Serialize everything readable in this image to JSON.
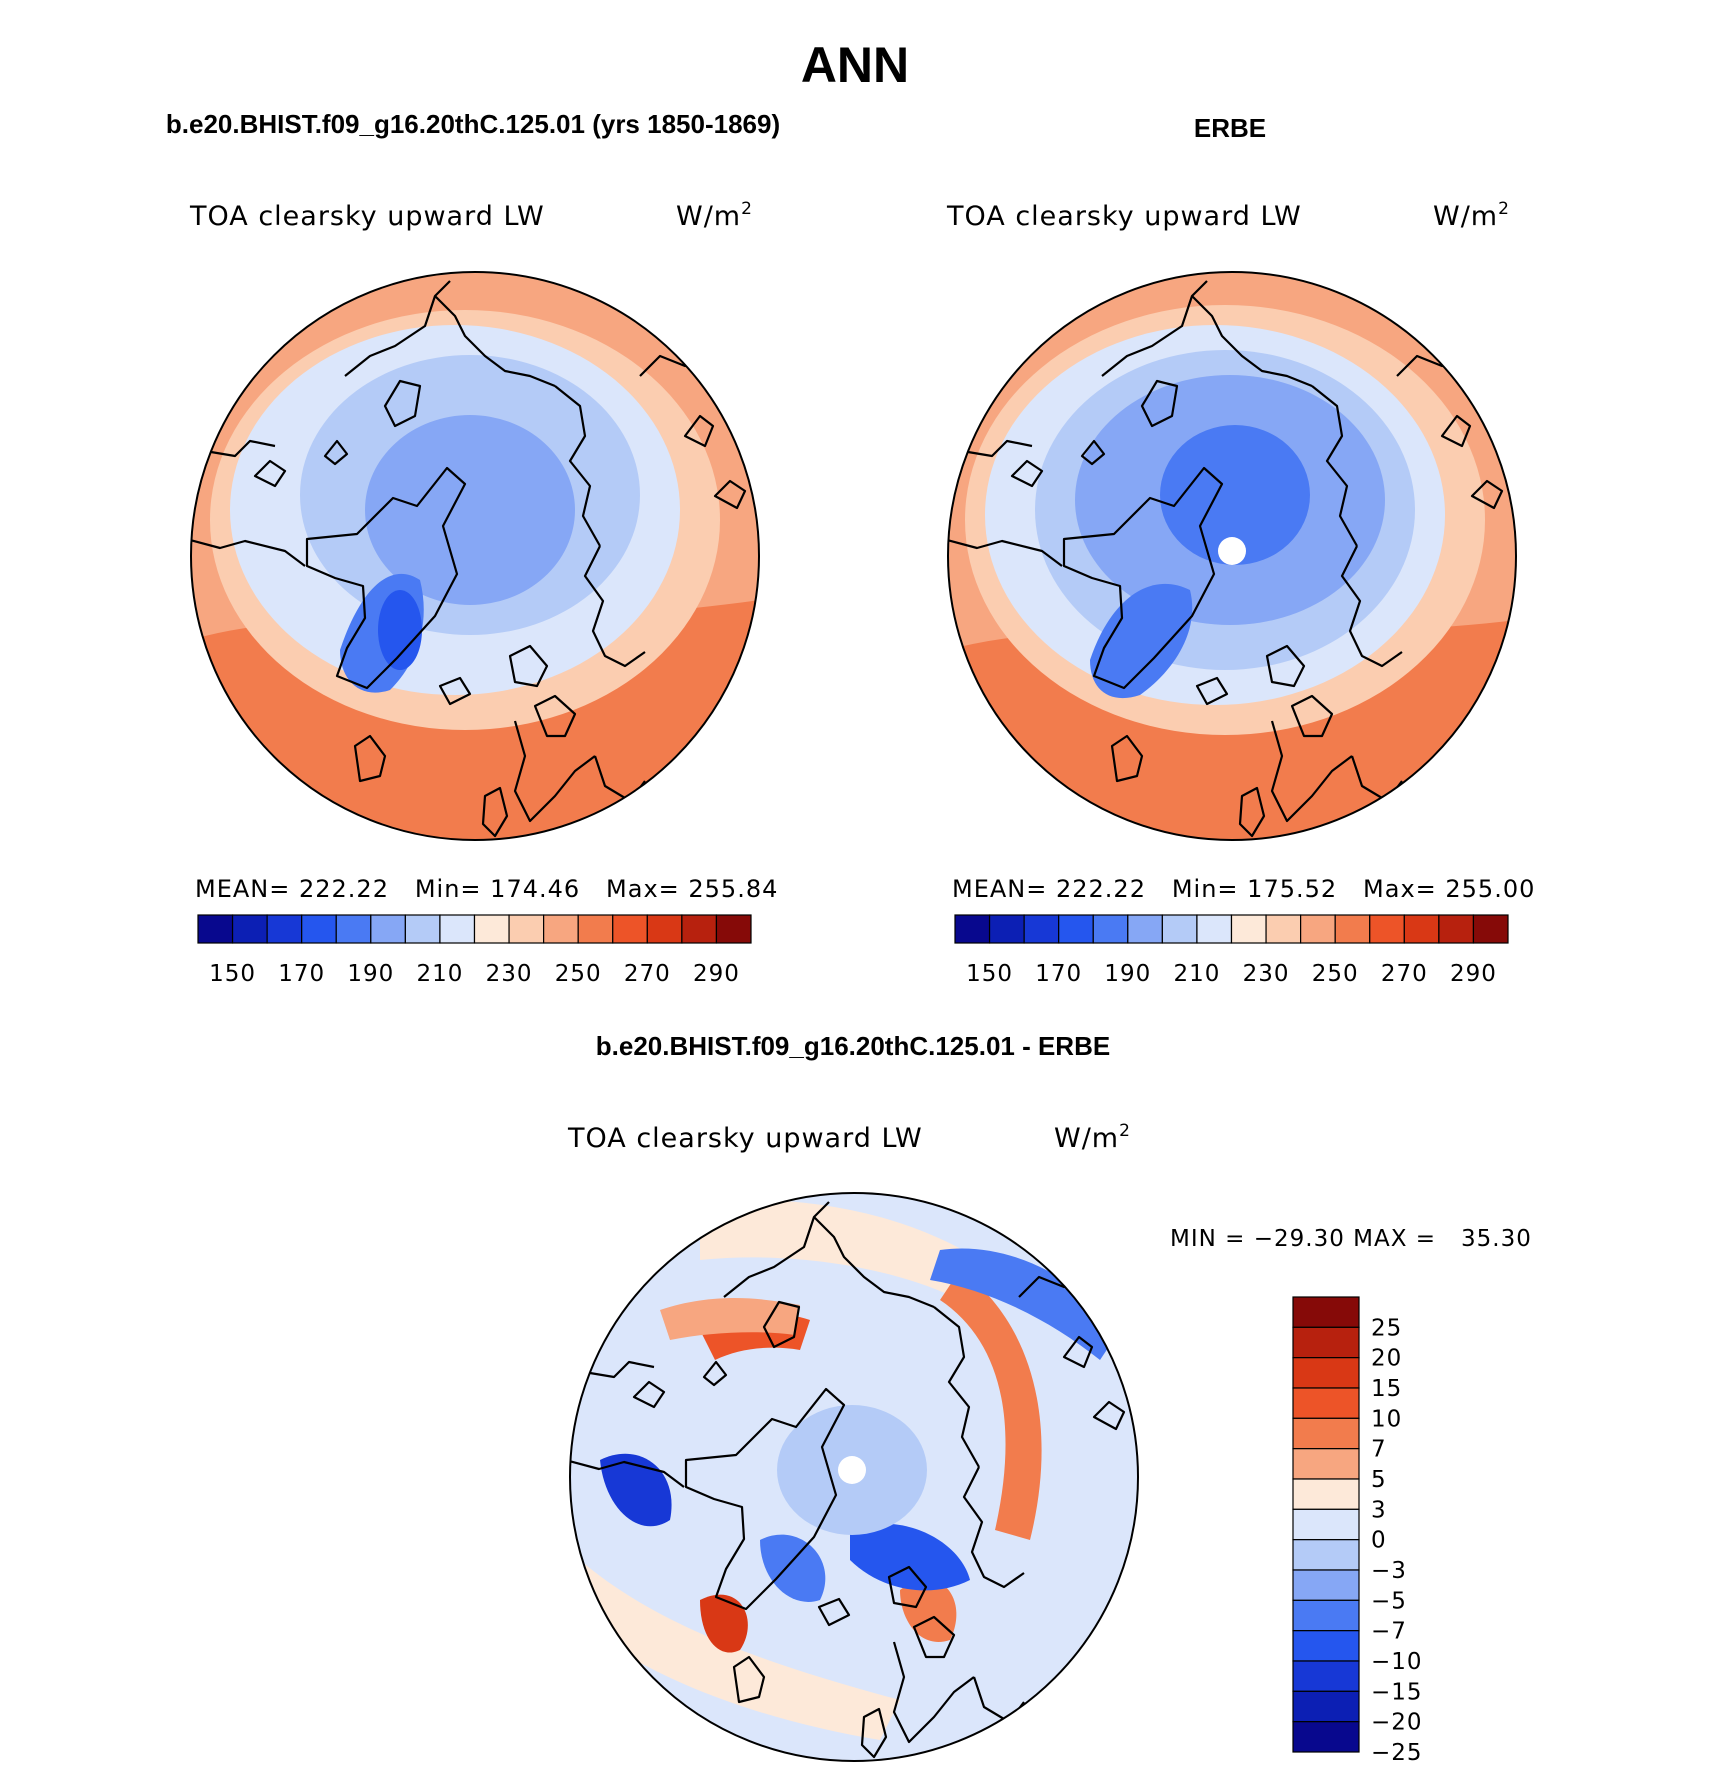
{
  "figure": {
    "title": "ANN",
    "left_title": "b.e20.BHIST.f09_g16.20thC.125.01 (yrs 1850-1869)",
    "right_title": "ERBE",
    "diff_title": "b.e20.BHIST.f09_g16.20thC.125.01 - ERBE"
  },
  "panels": {
    "model": {
      "variable": "TOA clearsky upward LW",
      "units": "W/m",
      "units_sup": "2",
      "stats": "MEAN= 222.22   Min= 174.46   Max= 255.84"
    },
    "obs": {
      "variable": "TOA clearsky upward LW",
      "units": "W/m",
      "units_sup": "2",
      "stats": "MEAN= 222.22   Min= 175.52   Max= 255.00"
    },
    "diff": {
      "variable": "TOA clearsky upward LW",
      "units": "W/m",
      "units_sup": "2",
      "stats": "MIN = −29.30 MAX =   35.30"
    }
  },
  "chart_data": [
    {
      "type": "heatmap",
      "name": "model",
      "projection": "north polar stereographic",
      "title": "b.e20.BHIST.f09_g16.20thC.125.01 (yrs 1850-1869)",
      "variable": "TOA clearsky upward LW",
      "units": "W/m2",
      "mean": 222.22,
      "min": 174.46,
      "max": 255.84,
      "levels": [
        140,
        150,
        160,
        170,
        180,
        190,
        200,
        210,
        220,
        230,
        240,
        250,
        260,
        270,
        280,
        290,
        300
      ],
      "tick_labels": [
        "150",
        "170",
        "190",
        "210",
        "230",
        "250",
        "270",
        "290"
      ]
    },
    {
      "type": "heatmap",
      "name": "obs",
      "projection": "north polar stereographic",
      "title": "ERBE",
      "variable": "TOA clearsky upward LW",
      "units": "W/m2",
      "mean": 222.22,
      "min": 175.52,
      "max": 255.0,
      "levels": [
        140,
        150,
        160,
        170,
        180,
        190,
        200,
        210,
        220,
        230,
        240,
        250,
        260,
        270,
        280,
        290,
        300
      ],
      "tick_labels": [
        "150",
        "170",
        "190",
        "210",
        "230",
        "250",
        "270",
        "290"
      ]
    },
    {
      "type": "heatmap",
      "name": "difference",
      "projection": "north polar stereographic",
      "title": "b.e20.BHIST.f09_g16.20thC.125.01 - ERBE",
      "variable": "TOA clearsky upward LW",
      "units": "W/m2",
      "min": -29.3,
      "max": 35.3,
      "tick_labels": [
        "25",
        "20",
        "15",
        "10",
        "7",
        "5",
        "3",
        "0",
        "−3",
        "−5",
        "−7",
        "−10",
        "−15",
        "−20",
        "−25"
      ]
    }
  ],
  "colors": {
    "abs_scale": [
      "#08088e",
      "#0c1fb4",
      "#1738d6",
      "#2556ee",
      "#4a7af3",
      "#86a7f5",
      "#b4cbf7",
      "#dbe6fb",
      "#fde9d9",
      "#fbcdb0",
      "#f7a680",
      "#f27c4d",
      "#ed5428",
      "#d93815",
      "#b7210e",
      "#860a08"
    ],
    "diff_scale": [
      "#860a08",
      "#b7210e",
      "#d93815",
      "#ed5428",
      "#f27c4d",
      "#f7a680",
      "#fde9d9",
      "#dbe6fb",
      "#b4cbf7",
      "#86a7f5",
      "#4a7af3",
      "#2556ee",
      "#1738d6",
      "#0c1fb4",
      "#08088e"
    ]
  }
}
